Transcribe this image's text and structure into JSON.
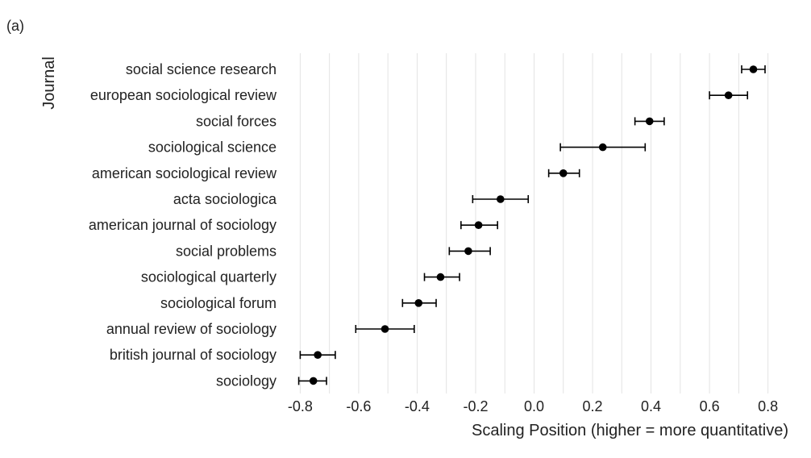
{
  "panel_label": "(a)",
  "chart_data": {
    "type": "scatter",
    "title": "",
    "xlabel": "Scaling Position (higher = more quantitative)",
    "ylabel": "Journal",
    "xlim": [
      -0.87,
      0.87
    ],
    "x_ticks": [
      "-0.8",
      "-0.6",
      "-0.4",
      "-0.2",
      "0.0",
      "0.2",
      "0.4",
      "0.6",
      "0.8"
    ],
    "x_tick_values": [
      -0.8,
      -0.6,
      -0.4,
      -0.2,
      0.0,
      0.2,
      0.4,
      0.6,
      0.8
    ],
    "grid": "vertical",
    "marker_color": "#000000",
    "points": [
      {
        "journal": "social science research",
        "x": 0.75,
        "low": 0.71,
        "high": 0.79
      },
      {
        "journal": "european sociological review",
        "x": 0.665,
        "low": 0.6,
        "high": 0.73
      },
      {
        "journal": "social forces",
        "x": 0.395,
        "low": 0.345,
        "high": 0.445
      },
      {
        "journal": "sociological science",
        "x": 0.235,
        "low": 0.09,
        "high": 0.38
      },
      {
        "journal": "american sociological review",
        "x": 0.1,
        "low": 0.05,
        "high": 0.155
      },
      {
        "journal": "acta sociologica",
        "x": -0.115,
        "low": -0.21,
        "high": -0.02
      },
      {
        "journal": "american journal of sociology",
        "x": -0.19,
        "low": -0.25,
        "high": -0.125
      },
      {
        "journal": "social problems",
        "x": -0.225,
        "low": -0.29,
        "high": -0.15
      },
      {
        "journal": "sociological quarterly",
        "x": -0.32,
        "low": -0.375,
        "high": -0.255
      },
      {
        "journal": "sociological forum",
        "x": -0.395,
        "low": -0.45,
        "high": -0.335
      },
      {
        "journal": "annual review of sociology",
        "x": -0.51,
        "low": -0.61,
        "high": -0.41
      },
      {
        "journal": "british journal of sociology",
        "x": -0.74,
        "low": -0.8,
        "high": -0.68
      },
      {
        "journal": "sociology",
        "x": -0.755,
        "low": -0.805,
        "high": -0.71
      }
    ]
  }
}
